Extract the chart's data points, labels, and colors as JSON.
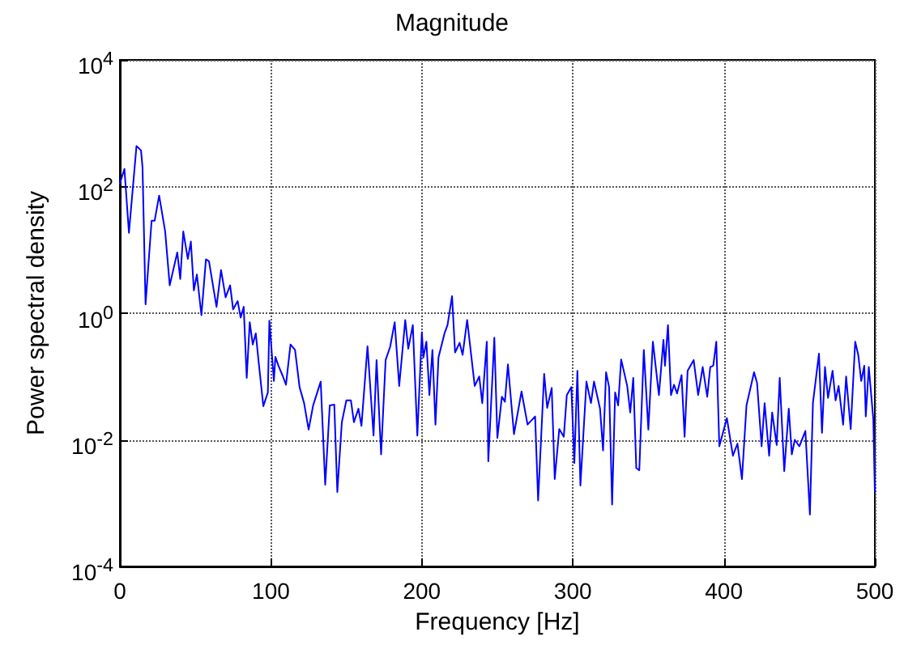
{
  "chart_data": {
    "type": "line",
    "title": "Magnitude",
    "xlabel": "Frequency [Hz]",
    "ylabel": "Power spectral density",
    "log": "y",
    "grid": true,
    "xlim": [
      0,
      500
    ],
    "xticks": [
      0,
      100,
      200,
      300,
      400,
      500
    ],
    "ylim": [
      0.0001,
      10000
    ],
    "yticks": [
      {
        "value": 0.0001,
        "label": "10$^{-4}$"
      },
      {
        "value": 0.01,
        "label": "10$^{-2}$"
      },
      {
        "value": 1,
        "label": "10$^{0}$"
      },
      {
        "value": 100,
        "label": "10$^{2}$"
      },
      {
        "value": 10000,
        "label": "10$^{4}$"
      }
    ],
    "series": [
      {
        "color": "#0000ff",
        "x": [
          0,
          3,
          6,
          11,
          14,
          15,
          17,
          21,
          23,
          26,
          30,
          33,
          38,
          40,
          42,
          45,
          47,
          49,
          51,
          54,
          57,
          59,
          64,
          67,
          70,
          73,
          75,
          78,
          80,
          82,
          84,
          86,
          88,
          90,
          92,
          95,
          98,
          99,
          102,
          103,
          105,
          108,
          110,
          113,
          116,
          119,
          122,
          125,
          128,
          133,
          136,
          139,
          142,
          144,
          147,
          150,
          153,
          155,
          158,
          160,
          164,
          168,
          170,
          173,
          176,
          179,
          182,
          185,
          189,
          191,
          194,
          197,
          200,
          201,
          203,
          205,
          207,
          209,
          211,
          215,
          217,
          220,
          222,
          225,
          227,
          230,
          235,
          238,
          240,
          243,
          244,
          248,
          250,
          253,
          255,
          257,
          261,
          266,
          270,
          275,
          277,
          281,
          283,
          286,
          288,
          291,
          294,
          296,
          299,
          301,
          303,
          305,
          309,
          312,
          314,
          318,
          320,
          322,
          324,
          326,
          328,
          330,
          332,
          336,
          338,
          340,
          342,
          344,
          347,
          350,
          353,
          357,
          360,
          361,
          363,
          365,
          367,
          369,
          372,
          374,
          376,
          380,
          383,
          386,
          389,
          391,
          393,
          395,
          397,
          402,
          406,
          409,
          412,
          415,
          420,
          422,
          425,
          427,
          430,
          432,
          435,
          437,
          440,
          443,
          445,
          447,
          450,
          454,
          457,
          459,
          463,
          465,
          467,
          469,
          472,
          474,
          476,
          479,
          481,
          484,
          487,
          489,
          491,
          493,
          494,
          496,
          499,
          500
        ],
        "values": [
          112,
          190,
          18.6,
          437,
          372,
          200,
          1.38,
          28.8,
          28.8,
          72,
          19.5,
          2.75,
          9.1,
          3.47,
          19.5,
          7.2,
          13.5,
          2.29,
          4.07,
          0.93,
          7.1,
          6.6,
          1.26,
          4.8,
          1.78,
          2.75,
          1.15,
          1.55,
          0.85,
          1.26,
          0.095,
          0.72,
          0.32,
          0.48,
          0.162,
          0.034,
          0.056,
          0.76,
          0.085,
          0.204,
          0.148,
          0.1,
          0.074,
          0.32,
          0.263,
          0.068,
          0.038,
          0.0145,
          0.035,
          0.083,
          0.00195,
          0.035,
          0.036,
          0.0015,
          0.019,
          0.042,
          0.042,
          0.019,
          0.031,
          0.0166,
          0.3,
          0.0117,
          0.182,
          0.0059,
          0.182,
          0.295,
          0.72,
          0.071,
          0.78,
          0.275,
          0.65,
          0.0117,
          0.5,
          0.2,
          0.355,
          0.051,
          0.263,
          0.0174,
          0.2,
          0.48,
          0.65,
          1.86,
          0.24,
          0.34,
          0.22,
          0.78,
          0.071,
          0.1,
          0.038,
          0.355,
          0.0046,
          0.41,
          0.0107,
          0.048,
          0.04,
          0.155,
          0.0123,
          0.058,
          0.0174,
          0.0234,
          0.0011,
          0.11,
          0.032,
          0.066,
          0.0024,
          0.0148,
          0.0112,
          0.051,
          0.068,
          0.0043,
          0.123,
          0.0019,
          0.083,
          0.038,
          0.083,
          0.031,
          0.0068,
          0.117,
          0.068,
          0.00095,
          0.056,
          0.035,
          0.186,
          0.071,
          0.027,
          0.095,
          0.0036,
          0.0033,
          0.263,
          0.0145,
          0.355,
          0.051,
          0.38,
          0.148,
          0.65,
          0.051,
          0.074,
          0.054,
          0.105,
          0.0112,
          0.123,
          0.182,
          0.051,
          0.141,
          0.048,
          0.141,
          0.148,
          0.355,
          0.0079,
          0.022,
          0.0056,
          0.0087,
          0.0024,
          0.035,
          0.117,
          0.079,
          0.0079,
          0.038,
          0.0056,
          0.027,
          0.0083,
          0.095,
          0.0032,
          0.031,
          0.0059,
          0.01,
          0.0079,
          0.0138,
          0.00066,
          0.038,
          0.23,
          0.0129,
          0.141,
          0.046,
          0.123,
          0.042,
          0.071,
          0.0174,
          0.1,
          0.0148,
          0.355,
          0.22,
          0.085,
          0.148,
          0.0234,
          0.141,
          0.021,
          0.0015
        ]
      }
    ]
  }
}
